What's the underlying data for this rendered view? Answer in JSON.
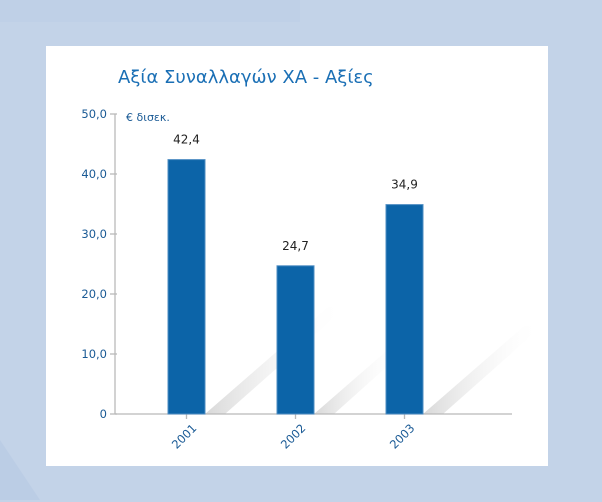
{
  "chart_data": {
    "type": "bar",
    "title": "Αξία Συναλλαγών ΧΑ - Αξίες",
    "unit": "€ δισεκ.",
    "categories": [
      "2001",
      "2002",
      "2003"
    ],
    "values": [
      42.4,
      24.7,
      34.9
    ],
    "value_labels": [
      "42,4",
      "24,7",
      "34,9"
    ],
    "ylim": [
      0,
      50
    ],
    "yticks": [
      0,
      10,
      20,
      30,
      40,
      50
    ],
    "ytick_labels": [
      "0",
      "10,0",
      "20,0",
      "30,0",
      "40,0",
      "50,0"
    ],
    "grid": false,
    "colors": {
      "bar": "#0c64a8",
      "axis": "#b9b9b9",
      "text": "#1a5a95",
      "background": "#c3d3e8",
      "panel": "#ffffff"
    }
  }
}
